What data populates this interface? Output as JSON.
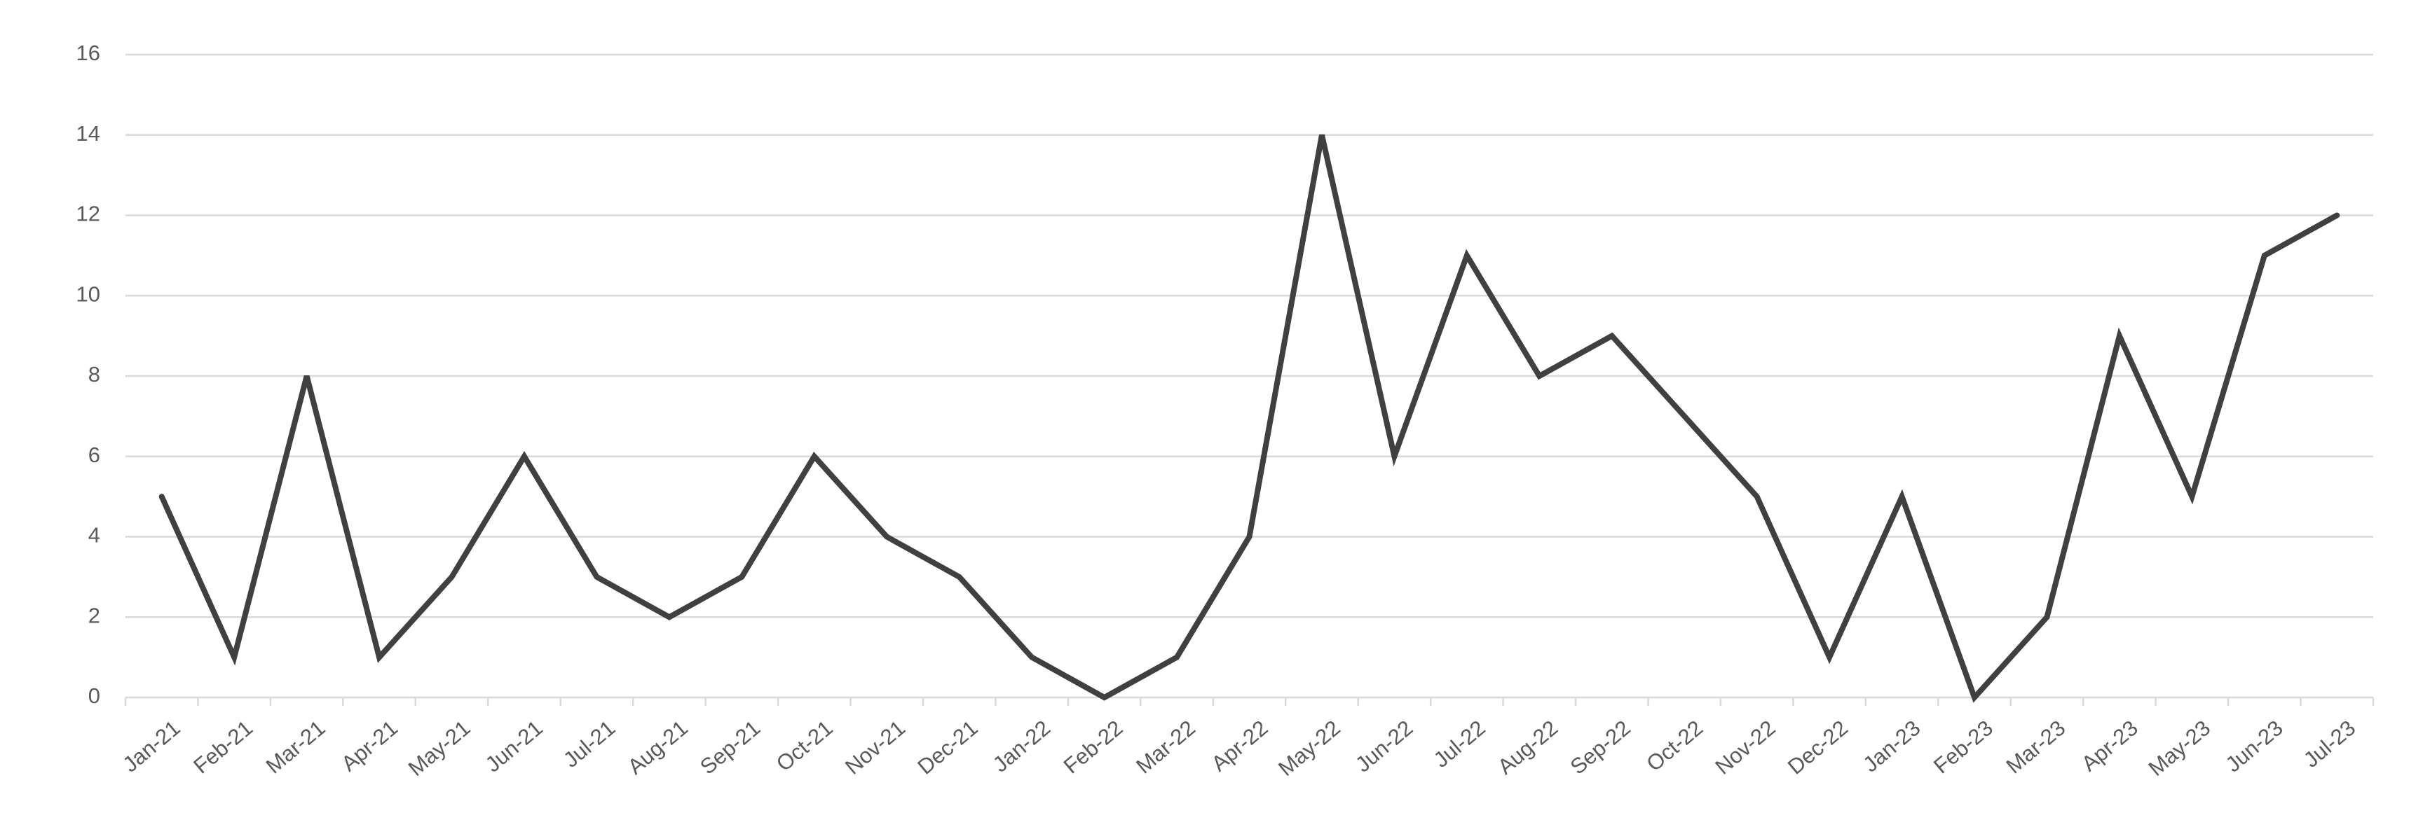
{
  "chart_data": {
    "type": "line",
    "categories": [
      "Jan-21",
      "Feb-21",
      "Mar-21",
      "Apr-21",
      "May-21",
      "Jun-21",
      "Jul-21",
      "Aug-21",
      "Sep-21",
      "Oct-21",
      "Nov-21",
      "Dec-21",
      "Jan-22",
      "Feb-22",
      "Mar-22",
      "Apr-22",
      "May-22",
      "Jun-22",
      "Jul-22",
      "Aug-22",
      "Sep-22",
      "Oct-22",
      "Nov-22",
      "Dec-22",
      "Jan-23",
      "Feb-23",
      "Mar-23",
      "Apr-23",
      "May-23",
      "Jun-23",
      "Jul-23"
    ],
    "values": [
      5,
      1,
      8,
      1,
      3,
      6,
      3,
      2,
      3,
      6,
      4,
      3,
      1,
      0,
      1,
      4,
      14,
      6,
      11,
      8,
      9,
      7,
      5,
      1,
      5,
      0,
      2,
      9,
      5,
      11,
      12
    ],
    "color": "#404040",
    "ylim": [
      0,
      16
    ],
    "yticks": [
      0,
      2,
      4,
      6,
      8,
      10,
      12,
      14,
      16
    ],
    "grid": true
  }
}
